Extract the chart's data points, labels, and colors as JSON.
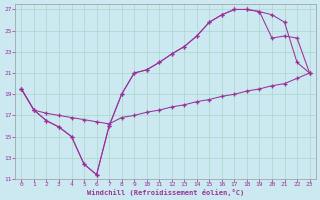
{
  "xlabel": "Windchill (Refroidissement éolien,°C)",
  "background_color": "#cce8f0",
  "grid_color": "#a8d8c8",
  "line_color": "#993399",
  "spine_color": "#999999",
  "xlim": [
    -0.5,
    23.5
  ],
  "ylim": [
    11,
    27.5
  ],
  "xticks": [
    0,
    1,
    2,
    3,
    4,
    5,
    6,
    7,
    8,
    9,
    10,
    11,
    12,
    13,
    14,
    15,
    16,
    17,
    18,
    19,
    20,
    21,
    22,
    23
  ],
  "yticks": [
    11,
    13,
    15,
    17,
    19,
    21,
    23,
    25,
    27
  ],
  "series1_x": [
    0,
    1,
    2,
    3,
    4,
    5,
    6,
    7,
    8,
    9,
    10,
    11,
    12,
    13,
    14,
    15,
    16,
    17,
    18,
    19,
    20,
    21,
    22,
    23
  ],
  "series1_y": [
    19.5,
    17.5,
    17.2,
    17.0,
    16.8,
    16.6,
    16.4,
    16.2,
    16.8,
    17.0,
    17.3,
    17.5,
    17.8,
    18.0,
    18.3,
    18.5,
    18.8,
    19.0,
    19.3,
    19.5,
    19.8,
    20.0,
    20.5,
    21.0
  ],
  "series2_x": [
    0,
    1,
    2,
    3,
    4,
    5,
    6,
    7,
    8,
    9,
    10,
    11,
    12,
    13,
    14,
    15,
    16,
    17,
    18,
    19,
    20,
    21,
    22,
    23
  ],
  "series2_y": [
    19.5,
    17.5,
    16.5,
    15.9,
    15.0,
    12.4,
    11.4,
    16.0,
    19.0,
    21.0,
    21.3,
    22.0,
    22.8,
    23.5,
    24.5,
    25.8,
    26.5,
    27.0,
    27.0,
    26.8,
    26.5,
    25.8,
    22.0,
    21.0
  ],
  "series3_x": [
    0,
    1,
    2,
    3,
    4,
    5,
    6,
    7,
    8,
    9,
    10,
    11,
    12,
    13,
    14,
    15,
    16,
    17,
    18,
    19,
    20,
    21,
    22,
    23
  ],
  "series3_y": [
    19.5,
    17.5,
    16.5,
    15.9,
    15.0,
    12.4,
    11.4,
    16.0,
    19.0,
    21.0,
    21.3,
    22.0,
    22.8,
    23.5,
    24.5,
    25.8,
    26.5,
    27.0,
    27.0,
    26.8,
    24.3,
    24.5,
    24.3,
    21.0
  ]
}
